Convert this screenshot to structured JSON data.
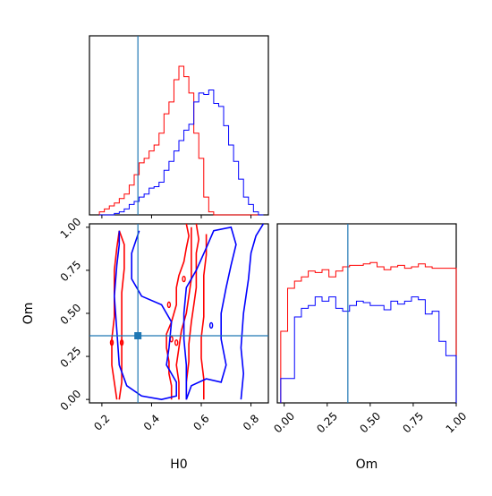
{
  "chart_data": {
    "type": "corner",
    "parameters": [
      "H0",
      "Om"
    ],
    "colors": {
      "series_a": "#ff0000",
      "series_b": "#0000ff",
      "truth": "#1f77b4"
    },
    "truth": {
      "H0": 0.345,
      "Om": 0.37
    },
    "panels": [
      {
        "id": "hist-H0",
        "type": "histogram",
        "param": "H0",
        "xlim": [
          0.15,
          0.87
        ],
        "x": [
          0.2,
          0.22,
          0.24,
          0.26,
          0.28,
          0.3,
          0.32,
          0.34,
          0.36,
          0.38,
          0.4,
          0.42,
          0.44,
          0.46,
          0.48,
          0.5,
          0.52,
          0.54,
          0.56,
          0.58,
          0.6,
          0.62,
          0.64,
          0.66,
          0.68,
          0.7,
          0.72,
          0.74,
          0.76,
          0.78,
          0.8,
          0.82,
          0.84
        ],
        "series": [
          {
            "values": [
              0.02,
              0.04,
              0.06,
              0.08,
              0.11,
              0.14,
              0.2,
              0.27,
              0.35,
              0.38,
              0.43,
              0.47,
              0.55,
              0.68,
              0.76,
              0.91,
              1.0,
              0.93,
              0.82,
              0.55,
              0.38,
              0.12,
              0.02,
              0,
              0,
              0,
              0,
              0,
              0,
              0,
              0,
              0,
              0
            ]
          },
          {
            "values": [
              0,
              0,
              0,
              0.01,
              0.02,
              0.04,
              0.07,
              0.09,
              0.12,
              0.14,
              0.18,
              0.19,
              0.22,
              0.3,
              0.36,
              0.43,
              0.5,
              0.57,
              0.61,
              0.76,
              0.82,
              0.81,
              0.84,
              0.75,
              0.73,
              0.6,
              0.47,
              0.36,
              0.24,
              0.12,
              0.07,
              0.02,
              0
            ]
          }
        ]
      },
      {
        "id": "hist-Om",
        "type": "histogram",
        "param": "Om",
        "xlim": [
          -0.04,
          1.0
        ],
        "x": [
          0.0,
          0.04,
          0.08,
          0.12,
          0.16,
          0.2,
          0.24,
          0.28,
          0.32,
          0.36,
          0.4,
          0.44,
          0.48,
          0.52,
          0.56,
          0.6,
          0.64,
          0.68,
          0.72,
          0.76,
          0.8,
          0.84,
          0.88,
          0.92,
          0.96,
          1.0
        ],
        "series": [
          {
            "values": [
              0.5,
              0.8,
              0.85,
              0.88,
              0.92,
              0.91,
              0.93,
              0.88,
              0.92,
              0.95,
              0.96,
              0.96,
              0.97,
              0.98,
              0.95,
              0.93,
              0.95,
              0.96,
              0.94,
              0.95,
              0.97,
              0.95,
              0.94,
              0.94,
              0.94,
              0.94
            ]
          },
          {
            "values": [
              0.17,
              0.17,
              0.6,
              0.66,
              0.68,
              0.74,
              0.71,
              0.74,
              0.66,
              0.64,
              0.68,
              0.71,
              0.7,
              0.68,
              0.68,
              0.65,
              0.71,
              0.69,
              0.71,
              0.74,
              0.72,
              0.62,
              0.64,
              0.43,
              0.33,
              0.33
            ]
          }
        ]
      },
      {
        "id": "contour-H0-Om",
        "type": "contour",
        "xparam": "H0",
        "yparam": "Om",
        "xlim": [
          0.15,
          0.87
        ],
        "ylim": [
          -0.02,
          1.02
        ],
        "xticks": [
          "0.2",
          "0.4",
          "0.6",
          "0.8"
        ],
        "yticks": [
          "0.00",
          "0.25",
          "0.50",
          "0.75",
          "1.00"
        ],
        "xlabel": "H0",
        "ylabel": "Om",
        "red_contours": [
          [
            [
              0.26,
              0.0
            ],
            [
              0.25,
              0.1
            ],
            [
              0.24,
              0.2
            ],
            [
              0.24,
              0.35
            ],
            [
              0.25,
              0.48
            ],
            [
              0.25,
              0.62
            ],
            [
              0.25,
              0.75
            ],
            [
              0.26,
              0.88
            ],
            [
              0.27,
              0.98
            ]
          ],
          [
            [
              0.27,
              0.98
            ],
            [
              0.29,
              0.9
            ],
            [
              0.29,
              0.76
            ],
            [
              0.28,
              0.62
            ],
            [
              0.28,
              0.5
            ],
            [
              0.28,
              0.35
            ],
            [
              0.28,
              0.2
            ],
            [
              0.28,
              0.1
            ],
            [
              0.27,
              0.0
            ]
          ],
          [
            [
              0.48,
              0.0
            ],
            [
              0.48,
              0.08
            ],
            [
              0.47,
              0.15
            ],
            [
              0.47,
              0.22
            ],
            [
              0.46,
              0.3
            ],
            [
              0.46,
              0.38
            ],
            [
              0.48,
              0.45
            ],
            [
              0.5,
              0.55
            ],
            [
              0.5,
              0.65
            ],
            [
              0.51,
              0.72
            ],
            [
              0.53,
              0.8
            ],
            [
              0.54,
              0.88
            ],
            [
              0.55,
              0.95
            ],
            [
              0.54,
              1.02
            ]
          ],
          [
            [
              0.54,
              0.0
            ],
            [
              0.54,
              0.1
            ],
            [
              0.55,
              0.22
            ],
            [
              0.55,
              0.32
            ],
            [
              0.56,
              0.45
            ],
            [
              0.57,
              0.55
            ],
            [
              0.58,
              0.65
            ],
            [
              0.58,
              0.75
            ],
            [
              0.58,
              0.85
            ],
            [
              0.59,
              0.93
            ],
            [
              0.58,
              1.02
            ]
          ],
          [
            [
              0.51,
              0.0
            ],
            [
              0.51,
              0.1
            ],
            [
              0.5,
              0.2
            ],
            [
              0.51,
              0.3
            ],
            [
              0.52,
              0.4
            ],
            [
              0.54,
              0.5
            ],
            [
              0.55,
              0.6
            ],
            [
              0.56,
              0.7
            ],
            [
              0.56,
              0.8
            ],
            [
              0.56,
              0.9
            ],
            [
              0.56,
              1.0
            ]
          ],
          [
            [
              0.61,
              0.0
            ],
            [
              0.61,
              0.12
            ],
            [
              0.6,
              0.24
            ],
            [
              0.6,
              0.36
            ],
            [
              0.61,
              0.48
            ],
            [
              0.61,
              0.6
            ],
            [
              0.61,
              0.72
            ],
            [
              0.62,
              0.84
            ],
            [
              0.62,
              0.96
            ]
          ]
        ],
        "blue_contours": [
          [
            [
              0.27,
              0.98
            ],
            [
              0.27,
              0.9
            ],
            [
              0.26,
              0.78
            ],
            [
              0.25,
              0.6
            ],
            [
              0.26,
              0.4
            ],
            [
              0.27,
              0.2
            ],
            [
              0.3,
              0.08
            ],
            [
              0.36,
              0.02
            ],
            [
              0.44,
              0.0
            ],
            [
              0.5,
              0.02
            ],
            [
              0.5,
              0.1
            ],
            [
              0.46,
              0.2
            ],
            [
              0.47,
              0.3
            ],
            [
              0.48,
              0.45
            ],
            [
              0.44,
              0.55
            ],
            [
              0.36,
              0.6
            ],
            [
              0.32,
              0.7
            ],
            [
              0.32,
              0.85
            ],
            [
              0.35,
              0.98
            ]
          ],
          [
            [
              0.54,
              0.0
            ],
            [
              0.56,
              0.08
            ],
            [
              0.62,
              0.12
            ],
            [
              0.68,
              0.1
            ],
            [
              0.7,
              0.2
            ],
            [
              0.68,
              0.35
            ],
            [
              0.68,
              0.5
            ],
            [
              0.7,
              0.65
            ],
            [
              0.72,
              0.78
            ],
            [
              0.74,
              0.9
            ],
            [
              0.72,
              1.0
            ],
            [
              0.65,
              0.98
            ],
            [
              0.62,
              0.88
            ],
            [
              0.58,
              0.75
            ],
            [
              0.54,
              0.65
            ],
            [
              0.53,
              0.5
            ],
            [
              0.53,
              0.35
            ],
            [
              0.54,
              0.2
            ],
            [
              0.54,
              0.08
            ],
            [
              0.54,
              0.0
            ]
          ],
          [
            [
              0.76,
              0.0
            ],
            [
              0.77,
              0.15
            ],
            [
              0.76,
              0.3
            ],
            [
              0.77,
              0.5
            ],
            [
              0.79,
              0.7
            ],
            [
              0.8,
              0.85
            ],
            [
              0.82,
              0.95
            ],
            [
              0.85,
              1.02
            ]
          ]
        ]
      }
    ],
    "om_xticks": [
      "0.00",
      "0.25",
      "0.50",
      "0.75",
      "1.00"
    ],
    "om_xlabel": "Om"
  }
}
